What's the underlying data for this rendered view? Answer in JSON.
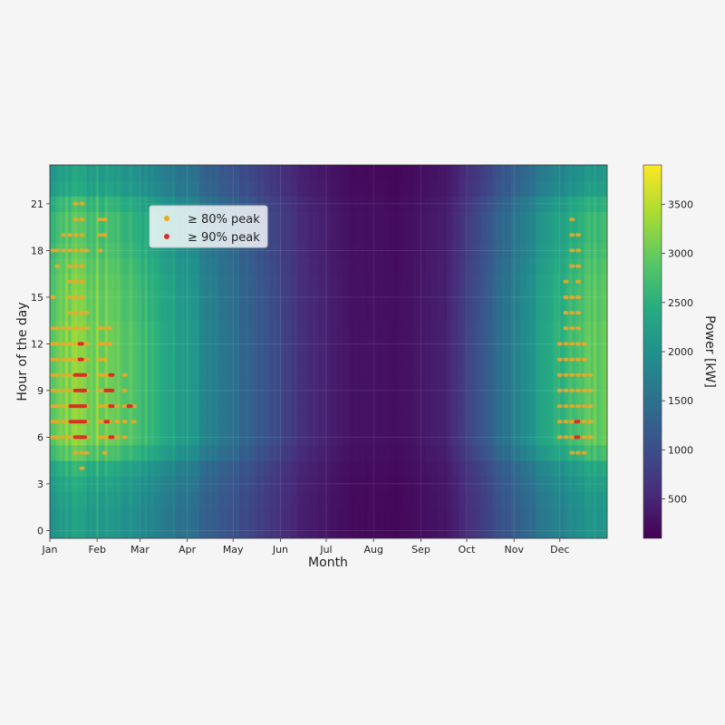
{
  "chart_data": {
    "type": "heatmap",
    "title": "",
    "xlabel": "Month",
    "ylabel": "Hour of the day",
    "x_ticks": [
      "Jan",
      "Feb",
      "Mar",
      "Apr",
      "May",
      "Jun",
      "Jul",
      "Aug",
      "Sep",
      "Oct",
      "Nov",
      "Dec"
    ],
    "y_ticks": [
      0,
      3,
      6,
      9,
      12,
      15,
      18,
      21
    ],
    "xlim_days": [
      0,
      365
    ],
    "ylim_hours": [
      -0.5,
      23.5
    ],
    "colormap": "viridis",
    "colorbar": {
      "label": "Power [kW]",
      "range": [
        100,
        3900
      ],
      "ticks": [
        500,
        1000,
        1500,
        2000,
        2500,
        3000,
        3500
      ]
    },
    "daily_level_kw": {
      "months": [
        "Jan",
        "Feb",
        "Mar",
        "Apr",
        "May",
        "Jun",
        "Jul",
        "Aug",
        "Sep",
        "Oct",
        "Nov",
        "Dec"
      ],
      "values": [
        3200,
        3000,
        2500,
        1800,
        1200,
        600,
        300,
        250,
        450,
        1300,
        2200,
        2900
      ]
    },
    "hour_profile_factor": [
      0.7,
      0.7,
      0.72,
      0.75,
      0.8,
      0.92,
      1.0,
      1.0,
      1.0,
      1.0,
      1.0,
      1.0,
      1.0,
      1.0,
      0.98,
      0.98,
      0.97,
      0.95,
      0.92,
      0.9,
      0.9,
      0.85,
      0.75,
      0.72
    ],
    "legend": {
      "position": "upper-left",
      "entries": [
        {
          "label": "≥ 80% peak",
          "color": "#f5a623"
        },
        {
          "label": "≥ 90% peak",
          "color": "#d73027"
        }
      ]
    },
    "peak_markers": {
      "threshold_80pct": [
        {
          "day": 2,
          "hours": [
            6,
            7,
            8,
            9,
            10,
            11,
            12,
            13,
            15,
            18
          ]
        },
        {
          "day": 5,
          "hours": [
            6,
            7,
            8,
            9,
            10,
            11,
            12,
            13,
            17,
            18
          ]
        },
        {
          "day": 9,
          "hours": [
            6,
            7,
            8,
            9,
            10,
            11,
            12,
            13,
            18,
            19
          ]
        },
        {
          "day": 13,
          "hours": [
            6,
            7,
            8,
            9,
            10,
            11,
            12,
            13,
            14,
            15,
            16,
            17,
            18,
            19
          ]
        },
        {
          "day": 17,
          "hours": [
            5,
            6,
            7,
            8,
            9,
            10,
            11,
            12,
            13,
            14,
            15,
            16,
            17,
            18,
            19,
            20,
            21
          ]
        },
        {
          "day": 21,
          "hours": [
            4,
            5,
            6,
            7,
            8,
            9,
            10,
            11,
            12,
            13,
            14,
            15,
            16,
            17,
            18,
            19,
            20,
            21
          ]
        },
        {
          "day": 24,
          "hours": [
            5,
            6,
            7,
            8,
            9,
            10,
            11,
            12,
            13,
            14,
            18
          ]
        },
        {
          "day": 33,
          "hours": [
            6,
            7,
            8,
            9,
            10,
            11,
            12,
            13,
            18,
            19,
            20
          ]
        },
        {
          "day": 36,
          "hours": [
            5,
            6,
            7,
            8,
            9,
            10,
            11,
            12,
            13,
            19,
            20
          ]
        },
        {
          "day": 39,
          "hours": [
            6,
            7,
            8,
            9,
            10,
            12,
            13
          ]
        },
        {
          "day": 44,
          "hours": [
            6,
            7,
            8
          ]
        },
        {
          "day": 49,
          "hours": [
            6,
            7,
            8,
            9,
            10
          ]
        },
        {
          "day": 55,
          "hours": [
            7,
            8
          ]
        },
        {
          "day": 334,
          "hours": [
            6,
            7,
            8,
            9,
            10,
            11,
            12
          ]
        },
        {
          "day": 338,
          "hours": [
            6,
            7,
            8,
            9,
            10,
            11,
            12,
            13,
            14,
            15,
            16
          ]
        },
        {
          "day": 342,
          "hours": [
            5,
            6,
            7,
            8,
            9,
            10,
            11,
            12,
            13,
            14,
            15,
            17,
            18,
            19,
            20
          ]
        },
        {
          "day": 346,
          "hours": [
            5,
            6,
            7,
            8,
            9,
            10,
            11,
            12,
            13,
            14,
            15,
            16,
            17,
            18,
            19
          ]
        },
        {
          "day": 350,
          "hours": [
            5,
            6,
            7,
            8,
            9,
            10,
            11,
            12
          ]
        },
        {
          "day": 354,
          "hours": [
            6,
            7,
            8,
            9,
            10
          ]
        }
      ],
      "threshold_90pct": [
        {
          "day": 14,
          "hours": [
            7,
            8
          ]
        },
        {
          "day": 17,
          "hours": [
            6,
            7,
            8,
            9,
            10
          ]
        },
        {
          "day": 20,
          "hours": [
            6,
            7,
            8,
            9,
            10,
            11,
            12
          ]
        },
        {
          "day": 22,
          "hours": [
            6,
            7,
            8,
            9,
            10
          ]
        },
        {
          "day": 37,
          "hours": [
            7,
            9
          ]
        },
        {
          "day": 40,
          "hours": [
            6,
            8,
            9,
            10
          ]
        },
        {
          "day": 52,
          "hours": [
            8
          ]
        },
        {
          "day": 345,
          "hours": [
            6,
            7
          ]
        }
      ]
    }
  }
}
